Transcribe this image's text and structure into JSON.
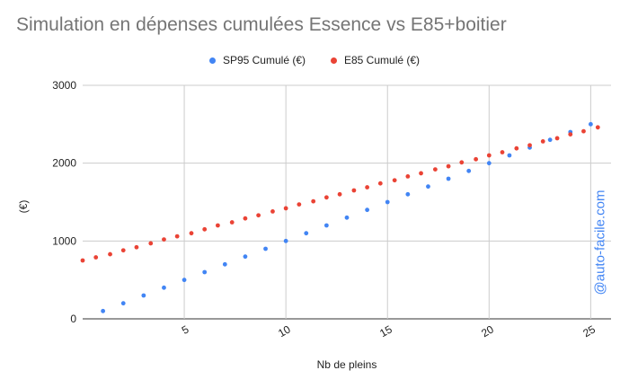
{
  "chart_data": {
    "type": "scatter",
    "title": "Simulation en dépenses cumulées Essence vs E85+boitier",
    "xlabel": "Nb de pleins",
    "ylabel": "(€)",
    "xlim": [
      0,
      26
    ],
    "ylim": [
      0,
      3000
    ],
    "xticks": [
      5,
      10,
      15,
      20,
      25
    ],
    "yticks": [
      0,
      1000,
      2000,
      3000
    ],
    "grid": true,
    "legend_position": "top",
    "series": [
      {
        "name": "SP95 Cumulé (€)",
        "color": "#4285f4",
        "x": [
          1,
          2,
          3,
          4,
          5,
          6,
          7,
          8,
          9,
          10,
          11,
          12,
          13,
          14,
          15,
          16,
          17,
          18,
          19,
          20,
          21,
          22,
          23,
          24,
          25
        ],
        "y": [
          100,
          200,
          300,
          400,
          500,
          600,
          700,
          800,
          900,
          1000,
          1100,
          1200,
          1300,
          1400,
          1500,
          1600,
          1700,
          1800,
          1900,
          2000,
          2100,
          2200,
          2300,
          2400,
          2500
        ]
      },
      {
        "name": "E85 Cumulé (€)",
        "color": "#ea4335",
        "x": [
          0,
          0.65,
          1.35,
          2,
          2.65,
          3.35,
          4,
          4.65,
          5.35,
          6,
          6.65,
          7.35,
          8,
          8.65,
          9.35,
          10,
          10.65,
          11.35,
          12,
          12.65,
          13.35,
          14,
          14.65,
          15.35,
          16,
          16.65,
          17.35,
          18,
          18.65,
          19.35,
          20,
          20.65,
          21.35,
          22,
          22.65,
          23.35,
          24,
          24.65,
          25.35
        ],
        "y": [
          750,
          790,
          830,
          880,
          920,
          970,
          1020,
          1060,
          1100,
          1150,
          1200,
          1240,
          1290,
          1330,
          1380,
          1420,
          1470,
          1510,
          1560,
          1600,
          1650,
          1690,
          1740,
          1780,
          1830,
          1870,
          1920,
          1960,
          2010,
          2050,
          2100,
          2140,
          2190,
          2230,
          2280,
          2320,
          2370,
          2410,
          2460
        ]
      }
    ]
  },
  "watermark": "@auto-facile.com"
}
